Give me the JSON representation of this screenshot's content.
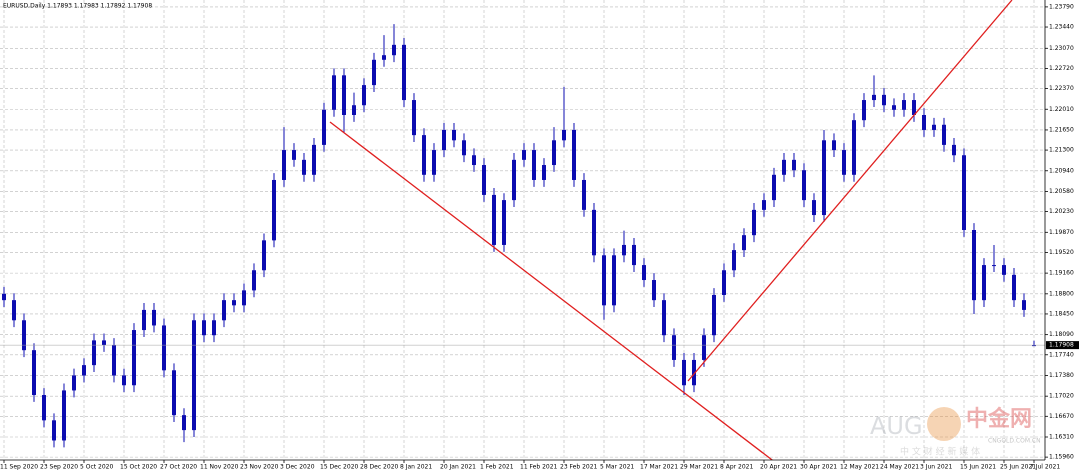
{
  "chart_data": {
    "type": "candlestick",
    "header": "EURUSD,Daily  1.17893 1.17983 1.17892 1.17908",
    "watermark": {
      "brand": "AUG",
      "name": "中金网",
      "site": "CNGOLD.COM.CN",
      "tagline": "中 文 财 经 新 媒 体"
    },
    "color": "#0c0cb0",
    "grid": true,
    "ylim": [
      1.1591,
      1.2391
    ],
    "yticks": [
      {
        "value": 1.2379,
        "label": "1.23790"
      },
      {
        "value": 1.2344,
        "label": "1.23440"
      },
      {
        "value": 1.2307,
        "label": "1.23070"
      },
      {
        "value": 1.2272,
        "label": "1.22720"
      },
      {
        "value": 1.2237,
        "label": "1.22370"
      },
      {
        "value": 1.2201,
        "label": "1.22010"
      },
      {
        "value": 1.2165,
        "label": "1.21650"
      },
      {
        "value": 1.213,
        "label": "1.21300"
      },
      {
        "value": 1.2094,
        "label": "1.20940"
      },
      {
        "value": 1.2058,
        "label": "1.20580"
      },
      {
        "value": 1.2023,
        "label": "1.20230"
      },
      {
        "value": 1.1987,
        "label": "1.19870"
      },
      {
        "value": 1.1952,
        "label": "1.19520"
      },
      {
        "value": 1.1916,
        "label": "1.19160"
      },
      {
        "value": 1.188,
        "label": "1.18800"
      },
      {
        "value": 1.1845,
        "label": "1.18450"
      },
      {
        "value": 1.1809,
        "label": "1.18090"
      },
      {
        "value": 1.1774,
        "label": "1.17740"
      },
      {
        "value": 1.1738,
        "label": "1.17380"
      },
      {
        "value": 1.1702,
        "label": "1.17020"
      },
      {
        "value": 1.1667,
        "label": "1.16670"
      },
      {
        "value": 1.1631,
        "label": "1.16310"
      },
      {
        "value": 1.1596,
        "label": "1.15960"
      }
    ],
    "categories": [
      "11 Sep 2020",
      null,
      null,
      null,
      "23 Sep 2020",
      null,
      null,
      null,
      "5 Oct 2020",
      null,
      null,
      null,
      "15 Oct 2020",
      null,
      null,
      null,
      "27 Oct 2020",
      null,
      null,
      null,
      "11 Nov 2020",
      null,
      null,
      null,
      "23 Nov 2020",
      null,
      null,
      null,
      "3 Dec 2020",
      null,
      null,
      null,
      "15 Dec 2020",
      null,
      null,
      null,
      "28 Dec 2020",
      null,
      null,
      null,
      "8 Jan 2021",
      null,
      null,
      null,
      "20 Jan 2021",
      null,
      null,
      null,
      "1 Feb 2021",
      null,
      null,
      null,
      "11 Feb 2021",
      null,
      null,
      null,
      "23 Feb 2021",
      null,
      null,
      null,
      "5 Mar 2021",
      null,
      null,
      null,
      "17 Mar 2021",
      null,
      null,
      null,
      "29 Mar 2021",
      null,
      null,
      null,
      "8 Apr 2021",
      null,
      null,
      null,
      "20 Apr 2021",
      null,
      null,
      null,
      "30 Apr 2021",
      null,
      null,
      null,
      "12 May 2021",
      null,
      null,
      null,
      "24 May 2021",
      null,
      null,
      null,
      "3 Jun 2021",
      null,
      null,
      null,
      "15 Jun 2021",
      null,
      null,
      null,
      "25 Jun 2021",
      null,
      null,
      "7 Jul 2021"
    ],
    "open": [
      1.188,
      1.1869,
      1.1834,
      1.1782,
      1.1704,
      1.166,
      1.1625,
      1.1712,
      1.1738,
      1.1756,
      1.1799,
      1.1791,
      1.1738,
      1.1721,
      1.1817,
      1.1852,
      1.1825,
      1.1747,
      1.1669,
      1.1643,
      1.1834,
      1.1808,
      1.1834,
      1.1869,
      1.186,
      1.1886,
      1.1921,
      1.1973,
      1.2078,
      1.213,
      1.2113,
      1.2087,
      1.2139,
      1.22,
      1.226,
      1.2191,
      1.2208,
      1.2243,
      1.2287,
      1.2295,
      1.2313,
      1.2217,
      1.2156,
      1.2087,
      1.213,
      1.2165,
      1.2147,
      1.2121,
      1.2104,
      1.2052,
      1.1965,
      1.2043,
      1.2113,
      1.213,
      1.2078,
      1.2104,
      1.2147,
      1.2165,
      1.2078,
      1.2026,
      1.1947,
      1.186,
      1.1947,
      1.1965,
      1.193,
      1.1904,
      1.1869,
      1.1808,
      1.1765,
      1.1721,
      1.1765,
      1.1808,
      1.1878,
      1.1921,
      1.1956,
      1.1982,
      1.2026,
      1.2043,
      1.2087,
      1.2113,
      1.2095,
      1.2043,
      1.2017,
      1.2147,
      1.213,
      1.2087,
      1.2182,
      1.2217,
      1.2226,
      1.2208,
      1.22,
      1.2217,
      1.2191,
      1.2165,
      1.2174,
      1.2139,
      1.2121,
      1.1991,
      1.1869,
      1.193,
      1.193,
      1.1913,
      1.1869,
      1.17893
    ],
    "high": [
      1.1892,
      1.1881,
      1.1846,
      1.1794,
      1.1716,
      1.1672,
      1.1724,
      1.175,
      1.1768,
      1.1811,
      1.1811,
      1.1803,
      1.175,
      1.1829,
      1.1864,
      1.1864,
      1.1837,
      1.1759,
      1.1681,
      1.1846,
      1.1846,
      1.1846,
      1.1881,
      1.1881,
      1.1898,
      1.1933,
      1.1985,
      1.209,
      1.217,
      1.2142,
      1.2125,
      1.2151,
      1.2212,
      1.2272,
      1.2272,
      1.223,
      1.2255,
      1.2299,
      1.233,
      1.2349,
      1.2325,
      1.2229,
      1.2168,
      1.2142,
      1.2177,
      1.2177,
      1.2159,
      1.2133,
      1.2116,
      1.2064,
      1.2055,
      1.2125,
      1.2142,
      1.2142,
      1.2116,
      1.217,
      1.224,
      1.2177,
      1.209,
      1.2038,
      1.1959,
      1.1959,
      1.199,
      1.1977,
      1.1942,
      1.1916,
      1.1881,
      1.182,
      1.1777,
      1.1777,
      1.182,
      1.189,
      1.1933,
      1.1968,
      1.1994,
      1.2038,
      1.2055,
      1.2099,
      1.2125,
      1.2125,
      1.2107,
      1.2055,
      1.2165,
      1.2159,
      1.2142,
      1.2194,
      1.2229,
      1.226,
      1.2238,
      1.222,
      1.2229,
      1.2229,
      1.2203,
      1.2186,
      1.2186,
      1.2151,
      1.2133,
      1.2003,
      1.1942,
      1.1965,
      1.1942,
      1.1925,
      1.1881,
      1.17983
    ],
    "low": [
      1.1857,
      1.1822,
      1.177,
      1.1692,
      1.1648,
      1.1613,
      1.1613,
      1.17,
      1.1726,
      1.1744,
      1.1779,
      1.1726,
      1.1709,
      1.1709,
      1.1805,
      1.1813,
      1.1735,
      1.1657,
      1.1622,
      1.1631,
      1.1796,
      1.1796,
      1.1822,
      1.1848,
      1.1848,
      1.1874,
      1.1909,
      1.1961,
      1.2066,
      1.2101,
      1.2075,
      1.2075,
      1.2127,
      1.2188,
      1.216,
      1.2179,
      1.2196,
      1.2231,
      1.2275,
      1.2283,
      1.2205,
      1.2144,
      1.2075,
      1.2075,
      1.2118,
      1.2135,
      1.2109,
      1.2092,
      1.204,
      1.1953,
      1.1953,
      1.2031,
      1.2101,
      1.2066,
      1.2066,
      1.2092,
      1.2135,
      1.2066,
      1.2014,
      1.1935,
      1.1835,
      1.1848,
      1.1935,
      1.1918,
      1.1892,
      1.1857,
      1.1796,
      1.1753,
      1.1704,
      1.1709,
      1.1753,
      1.1796,
      1.1866,
      1.1909,
      1.1944,
      1.197,
      1.2014,
      1.2031,
      1.2075,
      1.2083,
      1.2031,
      1.2005,
      1.2005,
      1.2118,
      1.2075,
      1.2075,
      1.217,
      1.2205,
      1.2196,
      1.2188,
      1.2188,
      1.2179,
      1.2153,
      1.2153,
      1.2127,
      1.2109,
      1.1979,
      1.1845,
      1.1857,
      1.1918,
      1.1901,
      1.1857,
      1.184,
      1.17892
    ],
    "close": [
      1.1869,
      1.1834,
      1.1782,
      1.1704,
      1.166,
      1.1625,
      1.1712,
      1.1738,
      1.1756,
      1.1799,
      1.1791,
      1.1738,
      1.1721,
      1.1817,
      1.1852,
      1.1825,
      1.1747,
      1.1669,
      1.1643,
      1.1834,
      1.1808,
      1.1834,
      1.1869,
      1.186,
      1.1886,
      1.1921,
      1.1973,
      1.2078,
      1.213,
      1.2113,
      1.2087,
      1.2139,
      1.22,
      1.226,
      1.2191,
      1.2208,
      1.2243,
      1.2287,
      1.2295,
      1.2313,
      1.2217,
      1.2156,
      1.2087,
      1.213,
      1.2165,
      1.2147,
      1.2121,
      1.2104,
      1.2052,
      1.1965,
      1.2043,
      1.2113,
      1.213,
      1.2078,
      1.2104,
      1.2147,
      1.2165,
      1.2078,
      1.2026,
      1.1947,
      1.186,
      1.1947,
      1.1965,
      1.193,
      1.1904,
      1.1869,
      1.1808,
      1.1765,
      1.1721,
      1.1765,
      1.1808,
      1.1878,
      1.1921,
      1.1956,
      1.1982,
      1.2026,
      1.2043,
      1.2087,
      1.2113,
      1.2095,
      1.2043,
      1.2017,
      1.2147,
      1.213,
      1.2087,
      1.2182,
      1.2217,
      1.2226,
      1.2208,
      1.22,
      1.2217,
      1.2191,
      1.2165,
      1.2174,
      1.2139,
      1.2121,
      1.1991,
      1.1869,
      1.193,
      1.193,
      1.1913,
      1.1869,
      1.1852,
      1.17908
    ]
  }
}
